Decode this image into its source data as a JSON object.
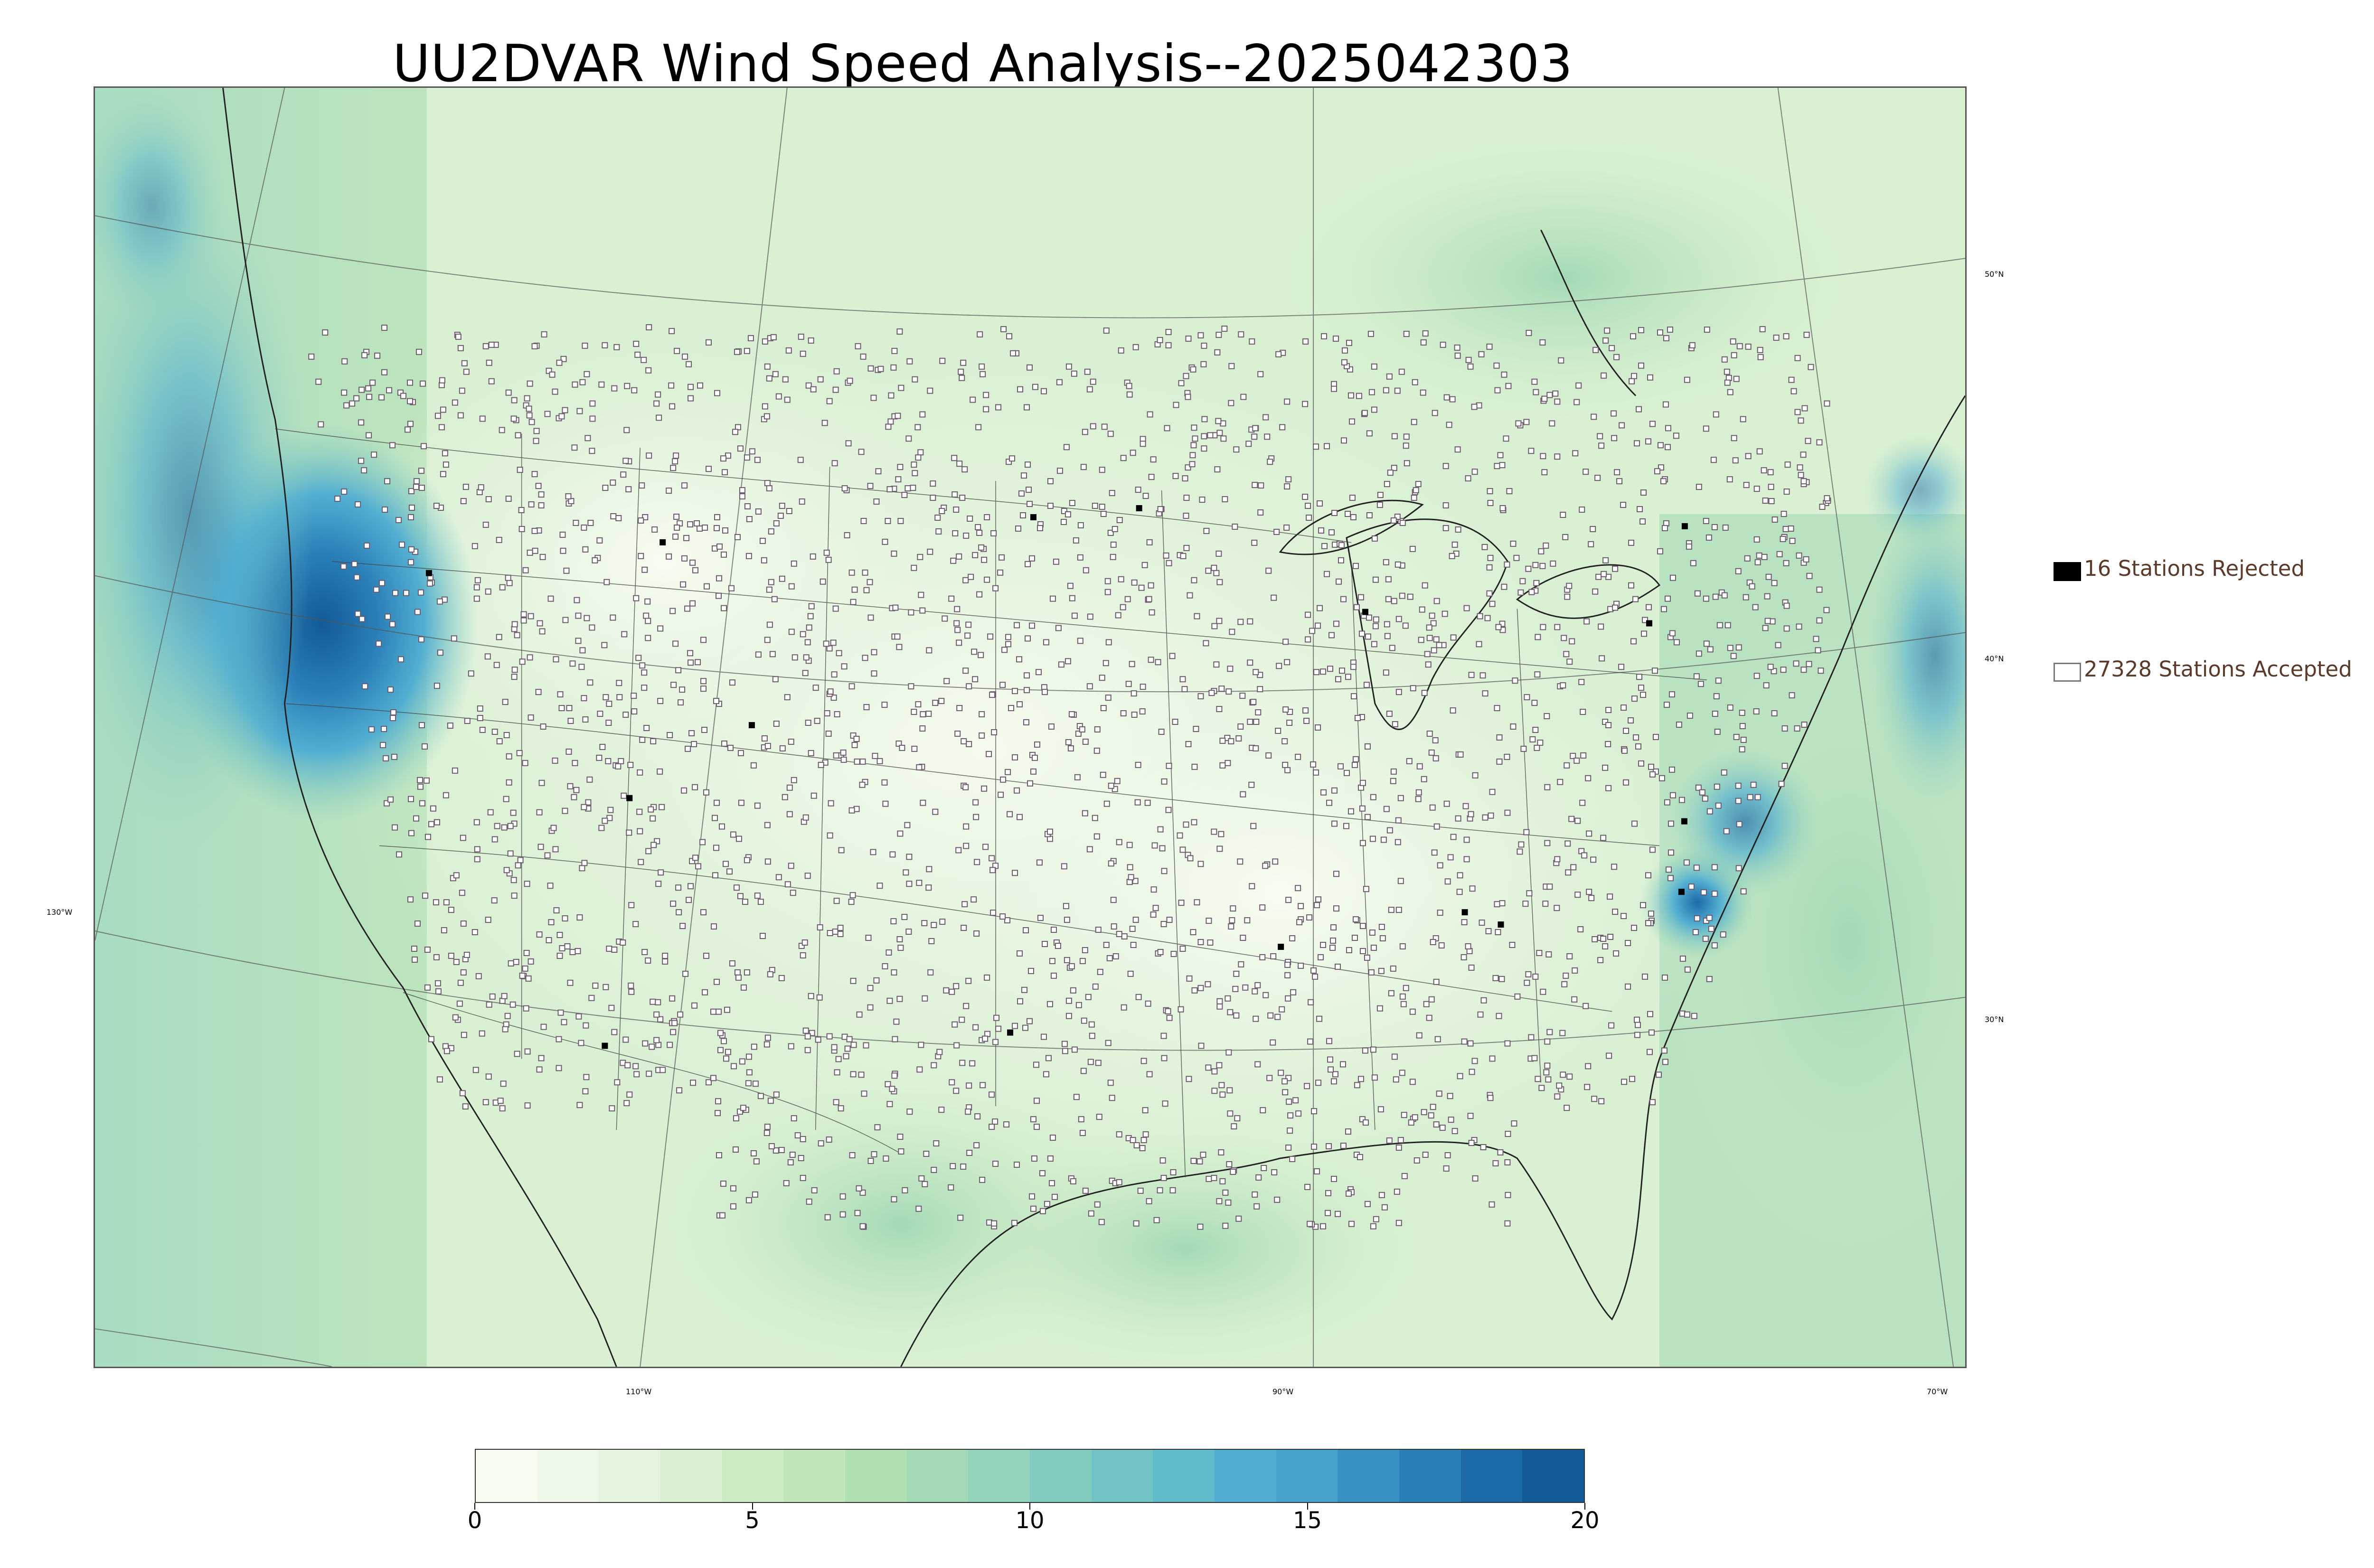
{
  "title": "UU2DVAR Wind Speed Analysis--2025042303",
  "map": {
    "projection": "Lambert conformal",
    "variable": "Wind Speed",
    "longitude_labels": [
      "130°W",
      "110°W",
      "90°W",
      "70°W"
    ],
    "latitude_labels": [
      "50°N",
      "40°N",
      "30°N"
    ]
  },
  "legend": {
    "rejected_label": "16 Stations Rejected",
    "accepted_label": "27328 Stations Accepted",
    "rejected_color": "#000000",
    "accepted_color": "#ffffff"
  },
  "colorbar": {
    "min": 0,
    "max": 20,
    "tick_labels": [
      "0",
      "5",
      "10",
      "15",
      "20"
    ],
    "colors": [
      "#f7fcf0",
      "#eef8e8",
      "#e4f4de",
      "#d9f0d3",
      "#cdebc5",
      "#c0e6ba",
      "#b1dfb4",
      "#a3d9b5",
      "#93d3b9",
      "#82cbbf",
      "#71c3c6",
      "#61bacb",
      "#52aed1",
      "#46a1cc",
      "#3991c3",
      "#2a7fb8",
      "#1d6aa9",
      "#135a98"
    ]
  },
  "stations": {
    "rejected": 16,
    "accepted": 27328
  }
}
